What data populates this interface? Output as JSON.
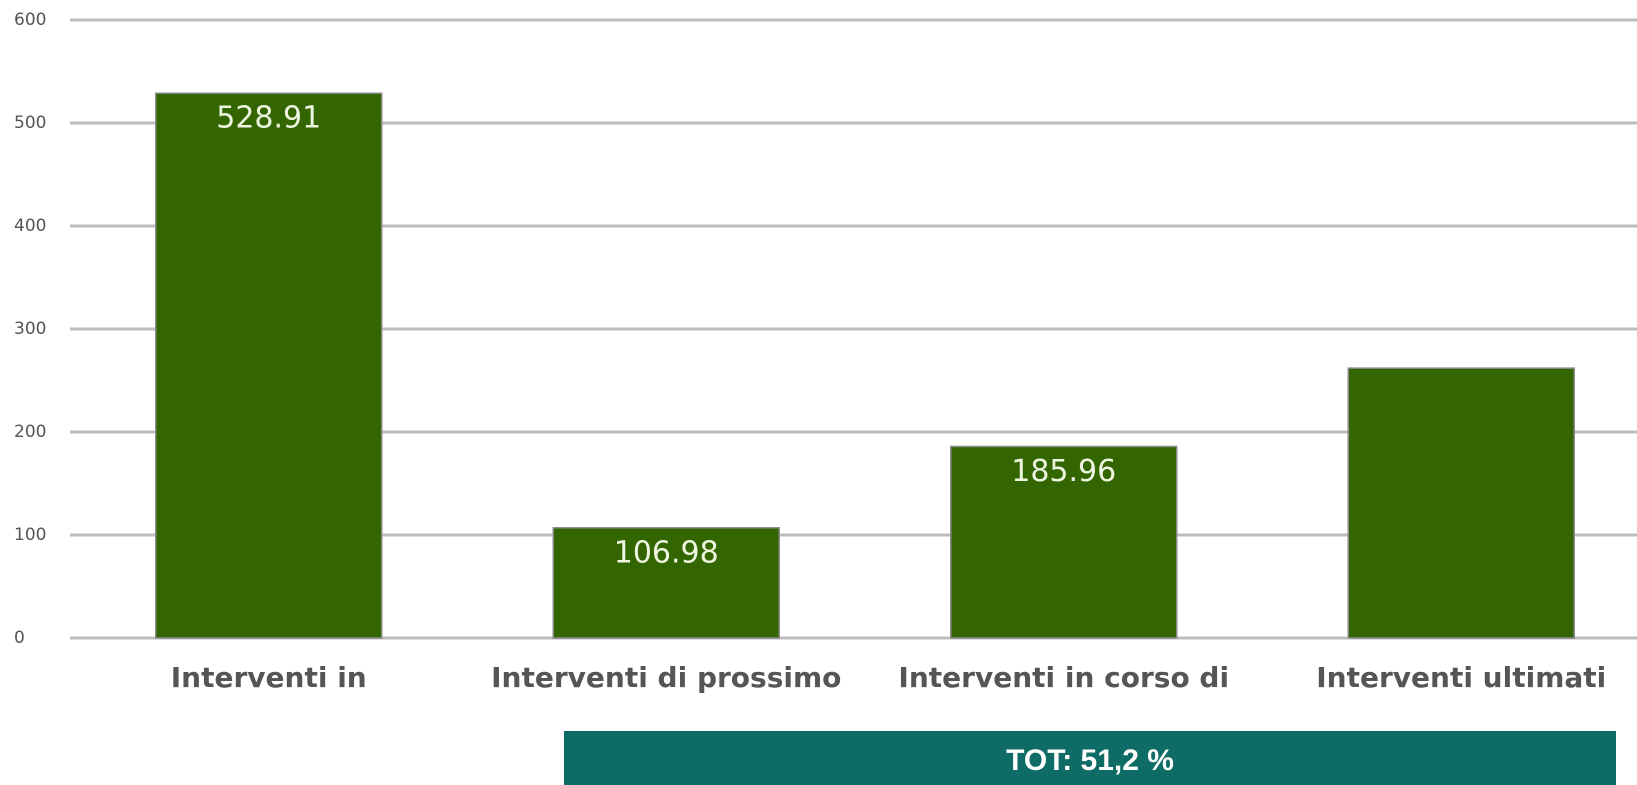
{
  "chart_data": {
    "type": "bar",
    "categories": [
      "Interventi in",
      "Interventi di prossimo",
      "Interventi in corso di",
      "Interventi ultimati"
    ],
    "values": [
      528.91,
      106.98,
      185.96,
      262
    ],
    "labeled": [
      true,
      true,
      true,
      false
    ],
    "color": "#336600",
    "ylim": [
      0,
      600
    ],
    "yticks": [
      0,
      100,
      200,
      300,
      400,
      500,
      600
    ],
    "grid": true,
    "annotation": "TOT: 51,2 %",
    "annotation_color": "#0e6b65"
  }
}
